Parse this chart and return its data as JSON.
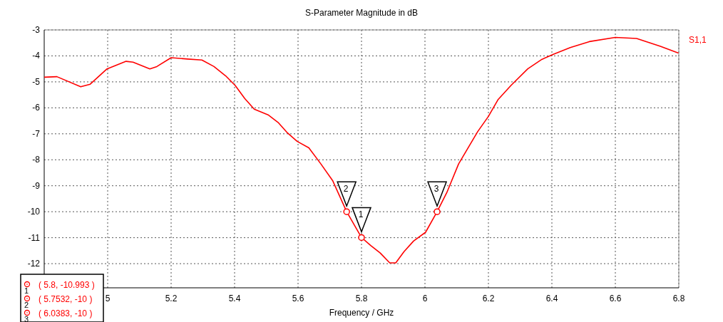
{
  "chart_data": {
    "type": "line",
    "title": "S-Parameter Magnitude in dB",
    "xlabel": "Frequency / GHz",
    "xlim": [
      4.8,
      6.8
    ],
    "xticks": [
      5,
      5.2,
      5.4,
      5.6,
      5.8,
      6,
      6.2,
      6.4,
      6.6,
      6.8
    ],
    "ylim": [
      -12.93,
      -3
    ],
    "yticks": [
      -3,
      -4,
      -5,
      -6,
      -7,
      -8,
      -9,
      -10,
      -11,
      -12
    ],
    "grid": true,
    "legend": "top right",
    "series": [
      {
        "name": "S1,1",
        "color": "#ff0000",
        "x": [
          4.8,
          4.84,
          4.915,
          4.945,
          4.998,
          5.058,
          5.08,
          5.133,
          5.155,
          5.2,
          5.252,
          5.297,
          5.335,
          5.372,
          5.402,
          5.432,
          5.462,
          5.507,
          5.537,
          5.567,
          5.597,
          5.634,
          5.672,
          5.709,
          5.7532,
          5.8,
          5.829,
          5.859,
          5.889,
          5.908,
          5.934,
          5.964,
          6.002,
          6.0383,
          6.069,
          6.106,
          6.166,
          6.2,
          6.23,
          6.271,
          6.324,
          6.369,
          6.406,
          6.458,
          6.518,
          6.6,
          6.667,
          6.742,
          6.799
        ],
        "values": [
          -4.82,
          -4.8,
          -5.19,
          -5.09,
          -4.5,
          -4.21,
          -4.24,
          -4.5,
          -4.41,
          -4.07,
          -4.12,
          -4.16,
          -4.41,
          -4.77,
          -5.14,
          -5.64,
          -6.05,
          -6.28,
          -6.56,
          -6.97,
          -7.29,
          -7.54,
          -8.16,
          -8.8,
          -10,
          -10.993,
          -11.3,
          -11.59,
          -11.97,
          -11.97,
          -11.54,
          -11.13,
          -10.79,
          -10,
          -9.26,
          -8.16,
          -6.92,
          -6.33,
          -5.69,
          -5.14,
          -4.5,
          -4.13,
          -3.93,
          -3.68,
          -3.45,
          -3.29,
          -3.33,
          -3.63,
          -3.89
        ]
      },
      {
        "type": "scatter",
        "color": "#ff0000",
        "marker": "circle",
        "x": [
          5.8,
          5.7532,
          6.0383
        ],
        "values": [
          -10.993,
          -10,
          -10
        ]
      }
    ],
    "annotations": [
      {
        "text": "1",
        "x": 5.8,
        "y": -10.993
      },
      {
        "text": "2",
        "x": 5.7532,
        "y": -10
      },
      {
        "text": "3",
        "x": 6.0383,
        "y": -10
      },
      "( 5.8, -10.993 )",
      "( 5.7532, -10 )",
      "( 6.0383, -10 )"
    ]
  }
}
